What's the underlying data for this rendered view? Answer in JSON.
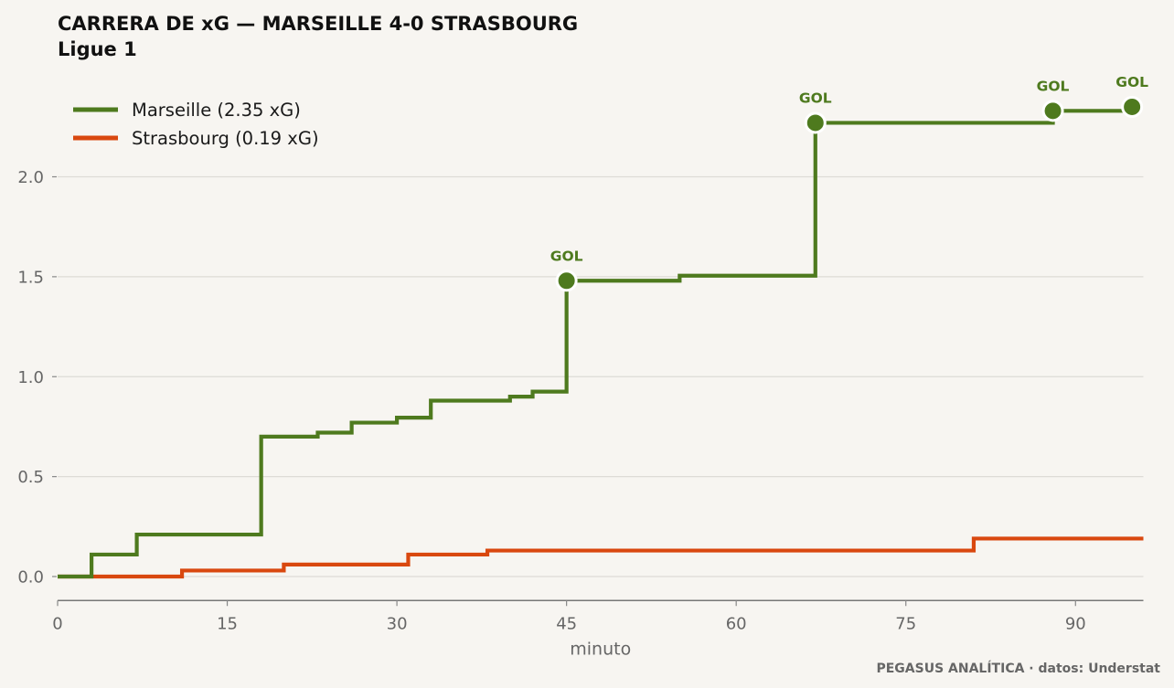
{
  "chart_data": {
    "type": "line",
    "step": "post",
    "title_line1": "CARRERA DE xG — MARSEILLE 4-0 STRASBOURG",
    "title_line2": "Ligue 1",
    "xlabel": "minuto",
    "ylabel": "",
    "xlim": [
      0,
      96
    ],
    "ylim": [
      -0.12,
      2.5
    ],
    "x_ticks": [
      0,
      15,
      30,
      45,
      60,
      75,
      90
    ],
    "y_ticks": [
      0.0,
      0.5,
      1.0,
      1.5,
      2.0
    ],
    "y_tick_labels": [
      "0.0",
      "0.5",
      "1.0",
      "1.5",
      "2.0"
    ],
    "grid": "horizontal",
    "legend_position": "top-left",
    "goal_label": "GOL",
    "source": "PEGASUS ANALÍTICA · datos: Understat",
    "series": [
      {
        "name": "Marseille (2.35 xG)",
        "color": "#4e7a1e",
        "x": [
          0,
          3,
          7,
          18,
          23,
          26,
          30,
          33,
          40,
          42,
          45,
          55,
          67,
          88,
          95
        ],
        "y": [
          0.0,
          0.11,
          0.21,
          0.7,
          0.72,
          0.77,
          0.795,
          0.88,
          0.9,
          0.925,
          1.48,
          1.505,
          2.27,
          2.33,
          2.35
        ],
        "goals": [
          {
            "x": 45,
            "y": 1.48
          },
          {
            "x": 67,
            "y": 2.27
          },
          {
            "x": 88,
            "y": 2.33
          },
          {
            "x": 95,
            "y": 2.35
          }
        ]
      },
      {
        "name": "Strasbourg (0.19 xG)",
        "color": "#d9480f",
        "x": [
          0,
          11,
          20,
          31,
          38,
          81,
          96
        ],
        "y": [
          0.0,
          0.03,
          0.06,
          0.11,
          0.13,
          0.19,
          0.19
        ],
        "goals": []
      }
    ]
  }
}
